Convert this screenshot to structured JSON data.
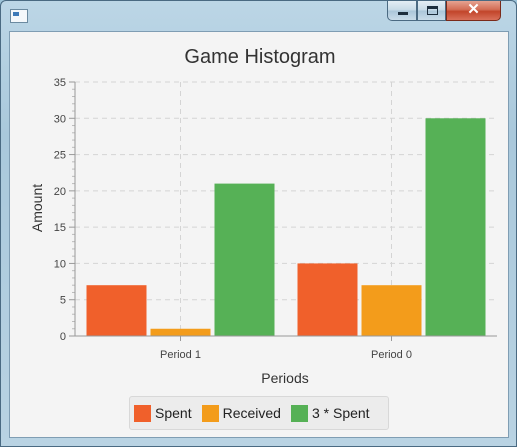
{
  "window": {
    "title": ""
  },
  "chart_data": {
    "type": "bar",
    "title": "Game Histogram",
    "xlabel": "Periods",
    "ylabel": "Amount",
    "categories": [
      "Period 1",
      "Period 0"
    ],
    "series": [
      {
        "name": "Spent",
        "values": [
          7,
          10
        ],
        "color": "#f0602b"
      },
      {
        "name": "Received",
        "values": [
          1,
          7
        ],
        "color": "#f39c1b"
      },
      {
        "name": "3 * Spent",
        "values": [
          21,
          30
        ],
        "color": "#56b156"
      }
    ],
    "ylim": [
      0,
      35
    ],
    "yticks": [
      0,
      5,
      10,
      15,
      20,
      25,
      30,
      35
    ],
    "grid": true,
    "legend_position": "bottom"
  }
}
